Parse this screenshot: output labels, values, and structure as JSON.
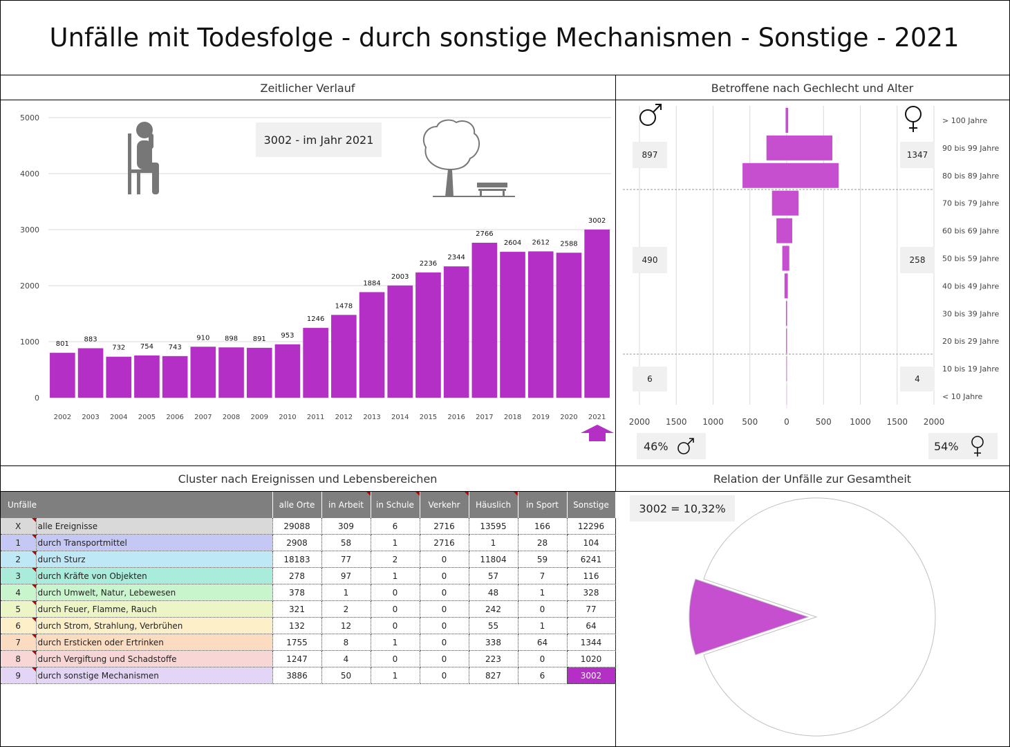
{
  "title": "Unfälle mit Todesfolge - durch sonstige Mechanismen - Sonstige - 2021",
  "panels": {
    "timeline": "Zeitlicher Verlauf",
    "pyramid": "Betroffene nach Gechlecht und Alter",
    "cluster": "Cluster nach Ereignissen und Lebensbereichen",
    "relation": "Relation der Unfälle zur Gesamtheit"
  },
  "timeline_badge": "3002 - im Jahr 2021",
  "pyramid_boxes": {
    "male_old": "897",
    "female_old": "1347",
    "male_mid": "490",
    "female_mid": "258",
    "male_young": "6",
    "female_young": "4"
  },
  "gender_share": {
    "male": "46%",
    "female": "54%"
  },
  "relation_badge": "3002 =  10,32%",
  "colors": {
    "accent": "#b42fc5",
    "pyramid": "#c54fcf",
    "header_gray": "#7f7f7f"
  },
  "chart_data": [
    {
      "type": "bar",
      "categories": [
        "2002",
        "2003",
        "2004",
        "2005",
        "2006",
        "2007",
        "2008",
        "2009",
        "2010",
        "2011",
        "2012",
        "2013",
        "2014",
        "2015",
        "2016",
        "2017",
        "2018",
        "2019",
        "2020",
        "2021"
      ],
      "values": [
        801,
        883,
        732,
        754,
        743,
        910,
        898,
        891,
        953,
        1246,
        1478,
        1884,
        2003,
        2236,
        2344,
        2766,
        2604,
        2612,
        2588,
        3002
      ],
      "y_ticks": [
        "0",
        "1000",
        "2000",
        "3000",
        "4000",
        "5000"
      ],
      "ylim": [
        0,
        5000
      ],
      "grid": true
    },
    {
      "type": "bar",
      "orientation": "horizontal-pyramid",
      "categories": [
        "> 100 Jahre",
        "90 bis 99 Jahre",
        "80 bis 89 Jahre",
        "70 bis 79 Jahre",
        "60 bis 69 Jahre",
        "50 bis 59 Jahre",
        "40 bis 49 Jahre",
        "30 bis 39 Jahre",
        "20 bis 29 Jahre",
        "10 bis 19 Jahre",
        "< 10 Jahre"
      ],
      "series": [
        {
          "values": [
            15,
            275,
            600,
            200,
            140,
            60,
            30,
            10,
            8,
            5,
            1
          ]
        },
        {
          "values": [
            20,
            620,
            705,
            160,
            75,
            35,
            15,
            5,
            4,
            3,
            1
          ]
        }
      ],
      "x_ticks": [
        "2000",
        "1500",
        "1000",
        "500",
        "0",
        "500",
        "1000",
        "1500",
        "2000"
      ],
      "xlim": [
        -2000,
        2000
      ],
      "grid": true
    },
    {
      "type": "pie",
      "values": [
        10.32,
        89.68
      ],
      "colors": [
        "#c54fcf",
        "#ffffff"
      ]
    }
  ],
  "table": {
    "headers": [
      "Unfälle",
      "alle Orte",
      "in Arbeit",
      "in Schule",
      "Verkehr",
      "Häuslich",
      "in Sport",
      "Sonstige"
    ],
    "rows": [
      {
        "idx": "X",
        "label": "alle Ereignisse",
        "vals": [
          "29088",
          "309",
          "6",
          "2716",
          "13595",
          "166",
          "12296"
        ],
        "color": "#d9d9d9"
      },
      {
        "idx": "1",
        "label": "durch Transportmittel",
        "vals": [
          "2908",
          "58",
          "1",
          "2716",
          "1",
          "28",
          "104"
        ],
        "color": "#c5c8f5"
      },
      {
        "idx": "2",
        "label": "durch Sturz",
        "vals": [
          "18183",
          "77",
          "2",
          "0",
          "11804",
          "59",
          "6241"
        ],
        "color": "#bfe8f7"
      },
      {
        "idx": "3",
        "label": "durch Kräfte von Objekten",
        "vals": [
          "278",
          "97",
          "1",
          "0",
          "57",
          "7",
          "116"
        ],
        "color": "#a9ecd9"
      },
      {
        "idx": "4",
        "label": "durch Umwelt, Natur, Lebewesen",
        "vals": [
          "378",
          "1",
          "0",
          "0",
          "48",
          "1",
          "328"
        ],
        "color": "#c9f5cd"
      },
      {
        "idx": "5",
        "label": "durch Feuer, Flamme, Rauch",
        "vals": [
          "321",
          "2",
          "0",
          "0",
          "242",
          "0",
          "77"
        ],
        "color": "#ecf5c6"
      },
      {
        "idx": "6",
        "label": "durch Strom, Strahlung, Verbrühen",
        "vals": [
          "132",
          "12",
          "0",
          "0",
          "55",
          "1",
          "64"
        ],
        "color": "#fdf0c8"
      },
      {
        "idx": "7",
        "label": "durch Ersticken oder Ertrinken",
        "vals": [
          "1755",
          "8",
          "1",
          "0",
          "338",
          "64",
          "1344"
        ],
        "color": "#fcdcc0"
      },
      {
        "idx": "8",
        "label": "durch Vergiftung und Schadstoffe",
        "vals": [
          "1247",
          "4",
          "0",
          "0",
          "223",
          "0",
          "1020"
        ],
        "color": "#f9d6d6"
      },
      {
        "idx": "9",
        "label": "durch sonstige Mechanismen",
        "vals": [
          "3886",
          "50",
          "1",
          "0",
          "827",
          "6",
          "3002"
        ],
        "color": "#e3d5f5"
      }
    ]
  }
}
